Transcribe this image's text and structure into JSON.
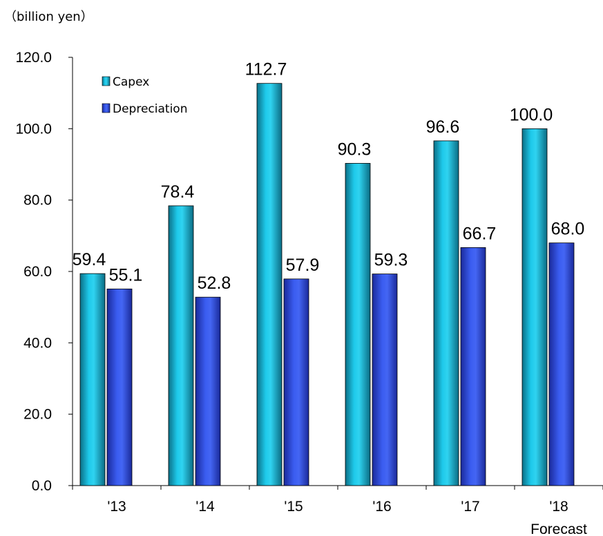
{
  "chart_data": {
    "type": "bar",
    "unit_label": "（billion yen）",
    "categories": [
      "'13",
      "'14",
      "'15",
      "'16",
      "'17",
      "'18"
    ],
    "category_sublabels": [
      "",
      "",
      "",
      "",
      "",
      "Forecast"
    ],
    "series": [
      {
        "name": "Capex",
        "values": [
          59.4,
          78.4,
          112.7,
          90.3,
          96.6,
          100.0
        ],
        "labels": [
          "59.4",
          "78.4",
          "112.7",
          "90.3",
          "96.6",
          "100.0"
        ],
        "color": "#1ab8d8"
      },
      {
        "name": "Depreciation",
        "values": [
          55.1,
          52.8,
          57.9,
          59.3,
          66.7,
          68.0
        ],
        "labels": [
          "55.1",
          "52.8",
          "57.9",
          "59.3",
          "66.7",
          "68.0"
        ],
        "color": "#3352e0"
      }
    ],
    "yticks": [
      "0.0",
      "20.0",
      "40.0",
      "60.0",
      "80.0",
      "100.0",
      "120.0"
    ],
    "ylim": [
      0,
      120
    ],
    "legend_position": "top-left",
    "grid": false
  }
}
